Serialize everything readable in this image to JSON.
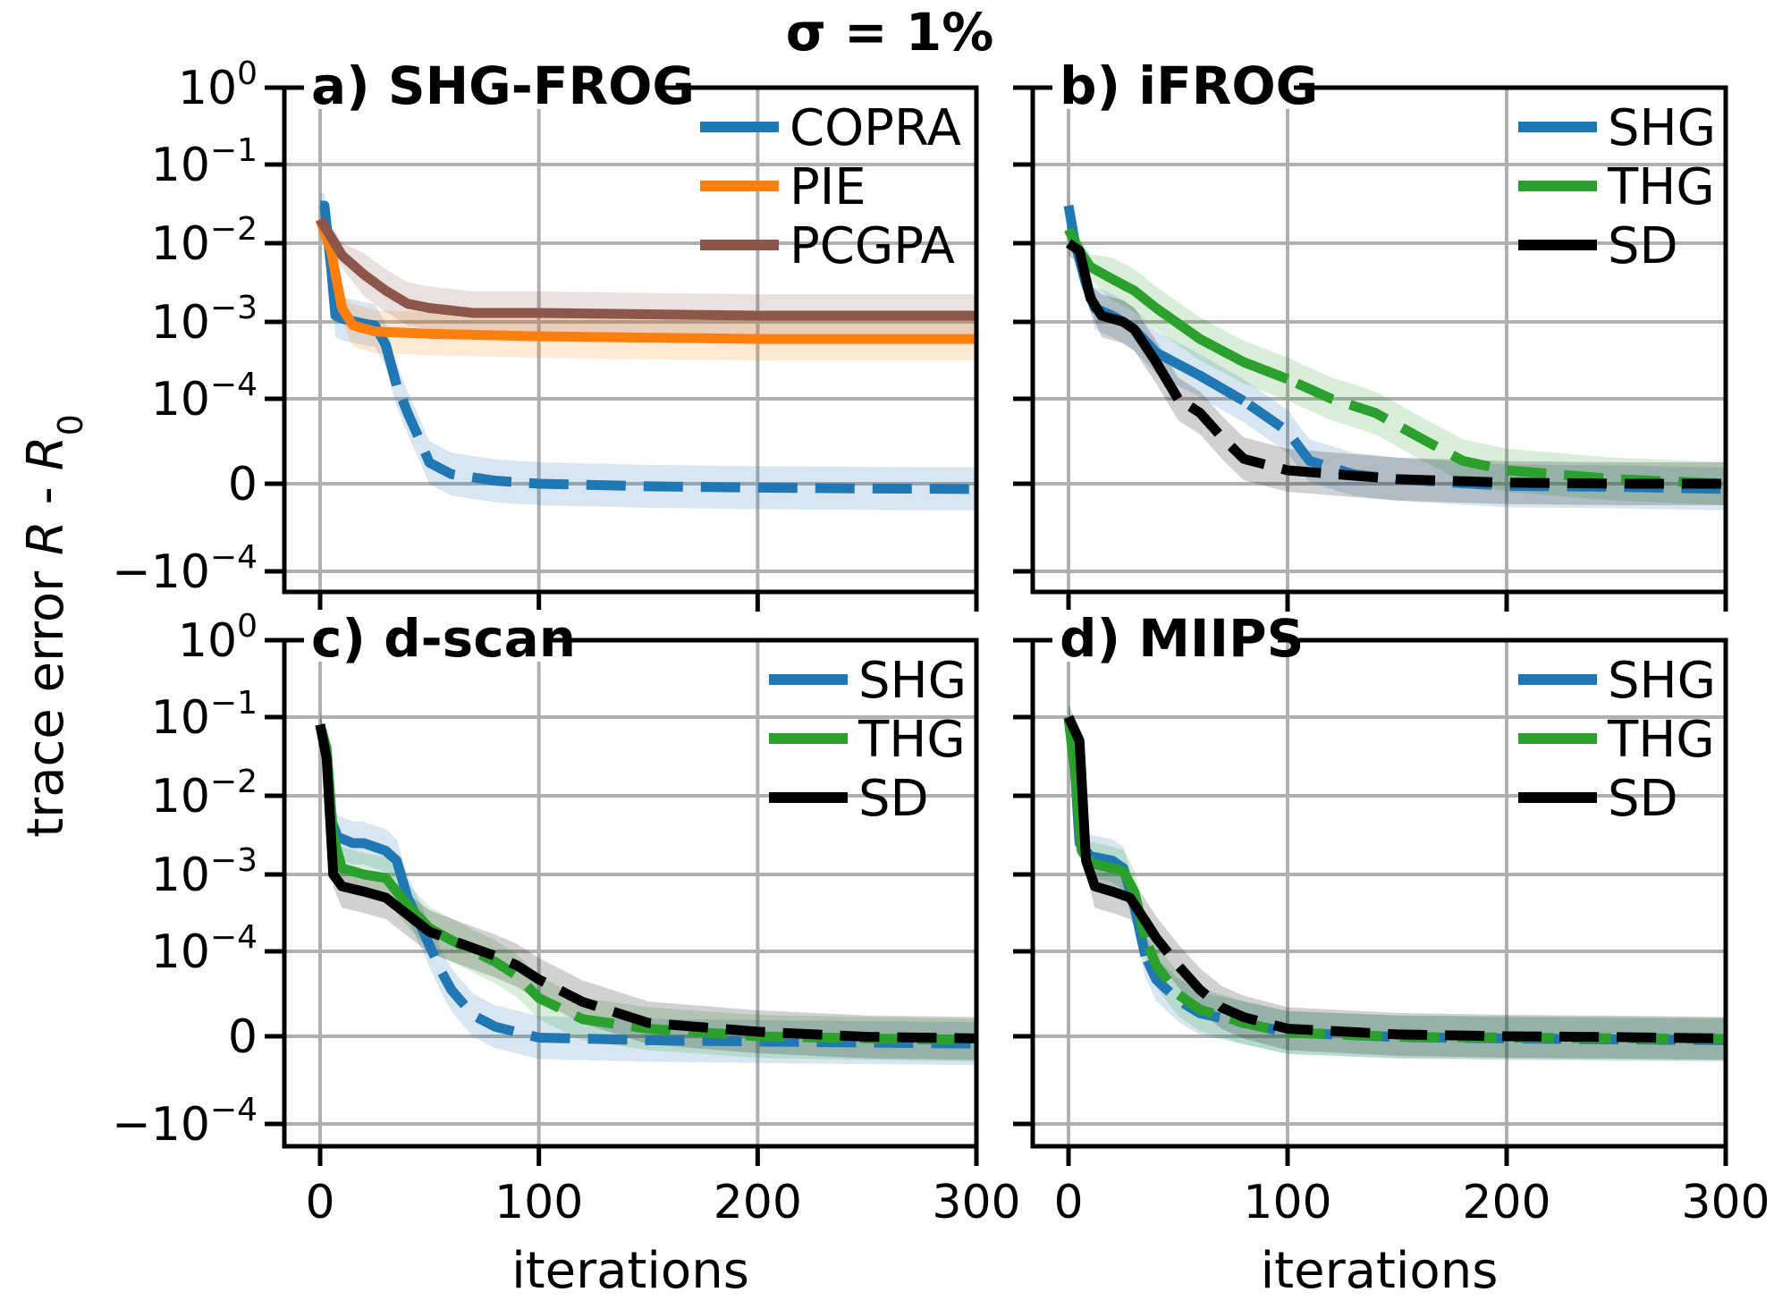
{
  "title": "σ = 1%",
  "ylabel": "trace error R - R₀",
  "xlabel": "iterations",
  "colors": {
    "blue": "#1f77b4",
    "orange": "#ff7f0e",
    "brown": "#8c564b",
    "green": "#2ca02c",
    "black": "#000000"
  },
  "chart_data": [
    {
      "type": "line",
      "panel_title": "a) SHG-FROG",
      "xlim": [
        0,
        300
      ],
      "xticks": [
        "0",
        "100",
        "200",
        "300"
      ],
      "yticks": [
        "10^0",
        "10^-1",
        "10^-2",
        "10^-3",
        "10^-4",
        "0",
        "-10^-4"
      ],
      "yscale": "symlog",
      "series": [
        {
          "name": "COPRA",
          "color": "#1f77b4",
          "points": [
            [
              0,
              0.03
            ],
            [
              2,
              0.03
            ],
            [
              5,
              0.005
            ],
            [
              7,
              0.0012
            ],
            [
              10,
              0.0011
            ],
            [
              20,
              0.00095
            ],
            [
              25,
              0.0009
            ],
            [
              30,
              0.0005
            ],
            [
              35,
              0.00015
            ],
            [
              40,
              5e-05
            ],
            [
              45,
              1.5e-05
            ],
            [
              50,
              5.5e-06
            ],
            [
              60,
              2.5e-06
            ],
            [
              80,
              8e-07
            ],
            [
              100,
              0.0
            ],
            [
              150,
              -1e-06
            ],
            [
              200,
              -1.5e-06
            ],
            [
              250,
              -1.8e-06
            ],
            [
              300,
              -2e-06
            ]
          ]
        },
        {
          "name": "PIE",
          "color": "#ff7f0e",
          "points": [
            [
              0,
              0.02
            ],
            [
              5,
              0.008
            ],
            [
              10,
              0.0015
            ],
            [
              15,
              0.0009
            ],
            [
              25,
              0.00075
            ],
            [
              50,
              0.0007
            ],
            [
              100,
              0.00065
            ],
            [
              200,
              0.0006
            ],
            [
              300,
              0.0006
            ]
          ]
        },
        {
          "name": "PCGPA",
          "color": "#8c564b",
          "points": [
            [
              0,
              0.02
            ],
            [
              5,
              0.012
            ],
            [
              10,
              0.007
            ],
            [
              20,
              0.004
            ],
            [
              30,
              0.0025
            ],
            [
              40,
              0.0017
            ],
            [
              50,
              0.0015
            ],
            [
              70,
              0.0013
            ],
            [
              100,
              0.0013
            ],
            [
              200,
              0.0012
            ],
            [
              300,
              0.0012
            ]
          ]
        }
      ]
    },
    {
      "type": "line",
      "panel_title": "b) iFROG",
      "xlim": [
        0,
        300
      ],
      "xticks": [
        "0",
        "100",
        "200",
        "300"
      ],
      "yscale": "symlog",
      "series": [
        {
          "name": "SHG",
          "color": "#1f77b4",
          "points": [
            [
              0,
              0.03
            ],
            [
              3,
              0.01
            ],
            [
              8,
              0.003
            ],
            [
              12,
              0.0015
            ],
            [
              20,
              0.0012
            ],
            [
              25,
              0.001
            ],
            [
              30,
              0.0008
            ],
            [
              40,
              0.0004
            ],
            [
              60,
              0.0002
            ],
            [
              80,
              9e-05
            ],
            [
              100,
              2e-05
            ],
            [
              110,
              6e-06
            ],
            [
              130,
              2.5e-06
            ],
            [
              150,
              1.2e-06
            ],
            [
              200,
              -8e-07
            ],
            [
              250,
              -1.2e-06
            ],
            [
              300,
              -2e-06
            ]
          ]
        },
        {
          "name": "THG",
          "color": "#2ca02c",
          "points": [
            [
              0,
              0.015
            ],
            [
              5,
              0.008
            ],
            [
              10,
              0.005
            ],
            [
              20,
              0.0035
            ],
            [
              30,
              0.0025
            ],
            [
              40,
              0.0015
            ],
            [
              60,
              0.0006
            ],
            [
              80,
              0.0003
            ],
            [
              100,
              0.00018
            ],
            [
              120,
              0.0001
            ],
            [
              140,
              5e-05
            ],
            [
              160,
              1.5e-05
            ],
            [
              180,
              6e-06
            ],
            [
              200,
              3.5e-06
            ],
            [
              250,
              1.2e-06
            ],
            [
              300,
              0.0
            ]
          ]
        },
        {
          "name": "SD",
          "color": "#000000",
          "points": [
            [
              0,
              0.01
            ],
            [
              5,
              0.008
            ],
            [
              10,
              0.002
            ],
            [
              15,
              0.0012
            ],
            [
              25,
              0.001
            ],
            [
              30,
              0.0008
            ],
            [
              40,
              0.0003
            ],
            [
              50,
              0.0001
            ],
            [
              60,
              5e-05
            ],
            [
              70,
              1.5e-05
            ],
            [
              80,
              6.5e-06
            ],
            [
              100,
              3.5e-06
            ],
            [
              150,
              1.2e-06
            ],
            [
              200,
              3e-07
            ],
            [
              250,
              0.0
            ],
            [
              300,
              0.0
            ]
          ]
        }
      ]
    },
    {
      "type": "line",
      "panel_title": "c) d-scan",
      "xlim": [
        0,
        300
      ],
      "xticks": [
        "0",
        "100",
        "200",
        "300"
      ],
      "yticks": [
        "10^0",
        "10^-1",
        "10^-2",
        "10^-3",
        "10^-4",
        "0",
        "-10^-4"
      ],
      "yscale": "symlog",
      "series": [
        {
          "name": "SHG",
          "color": "#1f77b4",
          "points": [
            [
              0,
              0.08
            ],
            [
              3,
              0.03
            ],
            [
              5,
              0.005
            ],
            [
              8,
              0.003
            ],
            [
              15,
              0.0025
            ],
            [
              20,
              0.0025
            ],
            [
              30,
              0.002
            ],
            [
              35,
              0.0015
            ],
            [
              40,
              0.0005
            ],
            [
              45,
              0.00025
            ],
            [
              50,
              0.00012
            ],
            [
              55,
              4e-05
            ],
            [
              60,
              1.5e-05
            ],
            [
              70,
              5.5e-06
            ],
            [
              80,
              2.5e-06
            ],
            [
              100,
              -5e-07
            ],
            [
              150,
              -1.5e-06
            ],
            [
              200,
              -2e-06
            ],
            [
              300,
              -2.8e-06
            ]
          ]
        },
        {
          "name": "THG",
          "color": "#2ca02c",
          "points": [
            [
              0,
              0.08
            ],
            [
              3,
              0.04
            ],
            [
              6,
              0.003
            ],
            [
              10,
              0.0012
            ],
            [
              20,
              0.001
            ],
            [
              30,
              0.0009
            ],
            [
              40,
              0.0004
            ],
            [
              50,
              0.0002
            ],
            [
              60,
              0.00014
            ],
            [
              70,
              0.0001
            ],
            [
              80,
              6e-05
            ],
            [
              90,
              3e-05
            ],
            [
              100,
              1e-05
            ],
            [
              120,
              4.5e-06
            ],
            [
              150,
              2e-06
            ],
            [
              200,
              0.0
            ],
            [
              250,
              -8e-07
            ],
            [
              300,
              -1.5e-06
            ]
          ]
        },
        {
          "name": "SD",
          "color": "#000000",
          "points": [
            [
              0,
              0.08
            ],
            [
              3,
              0.03
            ],
            [
              6,
              0.001
            ],
            [
              10,
              0.0007
            ],
            [
              20,
              0.0006
            ],
            [
              30,
              0.0005
            ],
            [
              40,
              0.0003
            ],
            [
              50,
              0.00018
            ],
            [
              60,
              0.00014
            ],
            [
              70,
              0.00011
            ],
            [
              80,
              8e-05
            ],
            [
              90,
              5e-05
            ],
            [
              100,
              2.5e-05
            ],
            [
              120,
              9e-06
            ],
            [
              150,
              3.5e-06
            ],
            [
              200,
              1.2e-06
            ],
            [
              250,
              -2e-07
            ],
            [
              300,
              -8e-07
            ]
          ]
        }
      ]
    },
    {
      "type": "line",
      "panel_title": "d) MIIPS",
      "xlim": [
        0,
        300
      ],
      "xticks": [
        "0",
        "100",
        "200",
        "300"
      ],
      "yscale": "symlog",
      "series": [
        {
          "name": "SHG",
          "color": "#1f77b4",
          "points": [
            [
              0,
              0.1
            ],
            [
              3,
              0.02
            ],
            [
              5,
              0.0025
            ],
            [
              10,
              0.0017
            ],
            [
              20,
              0.0015
            ],
            [
              25,
              0.0012
            ],
            [
              30,
              0.0004
            ],
            [
              35,
              8e-05
            ],
            [
              40,
              2.5e-05
            ],
            [
              50,
              9.5e-06
            ],
            [
              60,
              6e-06
            ],
            [
              80,
              3.5e-06
            ],
            [
              100,
              1e-06
            ],
            [
              150,
              -3e-07
            ],
            [
              200,
              -8e-07
            ],
            [
              250,
              -1.2e-06
            ],
            [
              300,
              -1.5e-06
            ]
          ]
        },
        {
          "name": "THG",
          "color": "#2ca02c",
          "points": [
            [
              0,
              0.1
            ],
            [
              3,
              0.02
            ],
            [
              6,
              0.002
            ],
            [
              10,
              0.0014
            ],
            [
              20,
              0.0012
            ],
            [
              25,
              0.0011
            ],
            [
              30,
              0.0006
            ],
            [
              35,
              0.00015
            ],
            [
              40,
              5e-05
            ],
            [
              50,
              1.2e-05
            ],
            [
              60,
              7e-06
            ],
            [
              80,
              3.5e-06
            ],
            [
              100,
              1e-06
            ],
            [
              150,
              -2e-07
            ],
            [
              200,
              -5e-07
            ],
            [
              300,
              -1e-06
            ]
          ]
        },
        {
          "name": "SD",
          "color": "#000000",
          "points": [
            [
              0,
              0.1
            ],
            [
              5,
              0.05
            ],
            [
              8,
              0.0015
            ],
            [
              12,
              0.0007
            ],
            [
              20,
              0.0006
            ],
            [
              28,
              0.0005
            ],
            [
              35,
              0.00025
            ],
            [
              40,
              0.00015
            ],
            [
              50,
              5e-05
            ],
            [
              60,
              1.5e-05
            ],
            [
              70,
              7.5e-06
            ],
            [
              80,
              5e-06
            ],
            [
              100,
              2e-06
            ],
            [
              150,
              5e-07
            ],
            [
              200,
              0.0
            ],
            [
              250,
              -3e-07
            ],
            [
              300,
              -8e-07
            ]
          ]
        }
      ]
    }
  ]
}
